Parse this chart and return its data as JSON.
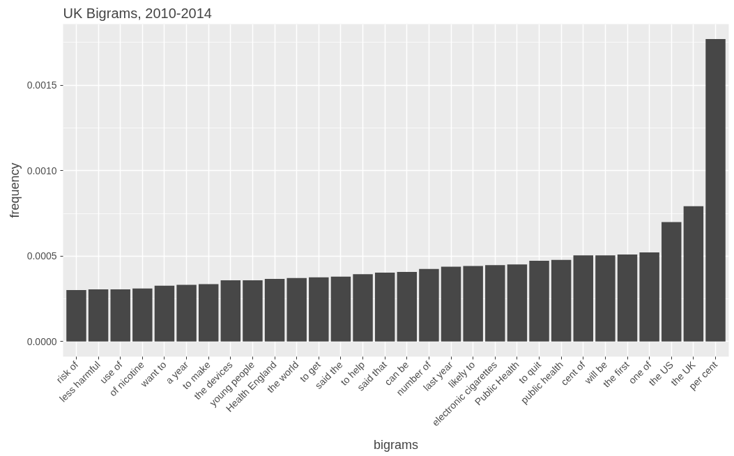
{
  "chart_data": {
    "type": "bar",
    "title": "UK Bigrams, 2010-2014",
    "xlabel": "bigrams",
    "ylabel": "frequency",
    "categories": [
      "risk of",
      "less harmful",
      "use of",
      "of nicotine",
      "want to",
      "a year",
      "to make",
      "the devices",
      "young people",
      "Health England",
      "the world",
      "to get",
      "said the",
      "to help",
      "said that",
      "can be",
      "number of",
      "last year",
      "likely to",
      "electronic cigarettes",
      "Public Health",
      "to quit",
      "public health",
      "cent of",
      "will be",
      "the first",
      "one of",
      "the US",
      "the UK",
      "per cent"
    ],
    "values": [
      0.000301,
      0.000305,
      0.000305,
      0.00031,
      0.000327,
      0.000332,
      0.000336,
      0.000358,
      0.000358,
      0.000367,
      0.000372,
      0.000376,
      0.00038,
      0.000394,
      0.000403,
      0.000407,
      0.000425,
      0.000438,
      0.000442,
      0.000447,
      0.000451,
      0.000473,
      0.000478,
      0.000504,
      0.000504,
      0.000509,
      0.000522,
      0.000699,
      0.000792,
      0.00177
    ],
    "color": "#474747",
    "ylim": [
      -8.85e-05,
      0.001858
    ],
    "yticks": [
      {
        "value": 0,
        "label": "0.0000"
      },
      {
        "value": 0.0005,
        "label": "0.0005"
      },
      {
        "value": 0.001,
        "label": "0.0010"
      },
      {
        "value": 0.0015,
        "label": "0.0015"
      }
    ],
    "grid": true
  }
}
